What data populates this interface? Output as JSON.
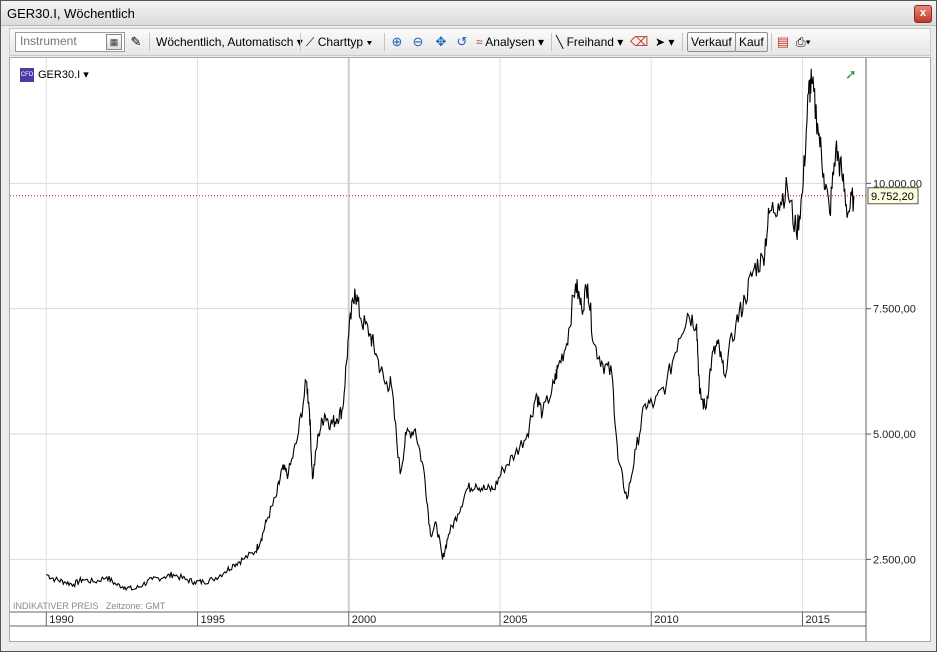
{
  "window": {
    "title": "GER30.I, Wöchentlich",
    "close_label": "x"
  },
  "toolbar": {
    "instrument_placeholder": "Instrument",
    "interval_label": "Wöchentlich, Automatisch",
    "charttype_label": "Charttyp",
    "analysen_label": "Analysen",
    "freihand_label": "Freihand",
    "verkauf_label": "Verkauf",
    "kauf_label": "Kauf"
  },
  "chart": {
    "legend_symbol": "GER30.I",
    "footer_price": "INDIKATIVER PREIS",
    "footer_tz": "Zeitzone: GMT",
    "current_price_label": "9.752,20"
  },
  "chart_data": {
    "type": "line",
    "series": [
      {
        "values": [
          [
            1990.0,
            2200
          ],
          [
            1990.3,
            2100
          ],
          [
            1990.6,
            2050
          ],
          [
            1990.9,
            2000
          ],
          [
            1991.2,
            2100
          ],
          [
            1991.6,
            2050
          ],
          [
            1992.0,
            2150
          ],
          [
            1992.3,
            2000
          ],
          [
            1992.6,
            1950
          ],
          [
            1992.9,
            1900
          ],
          [
            1993.2,
            2000
          ],
          [
            1993.5,
            2100
          ],
          [
            1993.9,
            2150
          ],
          [
            1994.2,
            2200
          ],
          [
            1994.6,
            2100
          ],
          [
            1994.9,
            2050
          ],
          [
            1995.2,
            2050
          ],
          [
            1995.5,
            2100
          ],
          [
            1995.9,
            2250
          ],
          [
            1996.2,
            2400
          ],
          [
            1996.5,
            2500
          ],
          [
            1996.9,
            2650
          ],
          [
            1997.1,
            2900
          ],
          [
            1997.3,
            3300
          ],
          [
            1997.6,
            3750
          ],
          [
            1997.8,
            4300
          ],
          [
            1998.0,
            4200
          ],
          [
            1998.3,
            4900
          ],
          [
            1998.6,
            6050
          ],
          [
            1998.7,
            5500
          ],
          [
            1998.8,
            4100
          ],
          [
            1999.0,
            5000
          ],
          [
            1999.2,
            5400
          ],
          [
            1999.4,
            5200
          ],
          [
            1999.6,
            5300
          ],
          [
            1999.8,
            5500
          ],
          [
            2000.0,
            7000
          ],
          [
            2000.2,
            7900
          ],
          [
            2000.4,
            7300
          ],
          [
            2000.7,
            7000
          ],
          [
            2000.9,
            6600
          ],
          [
            2001.2,
            6000
          ],
          [
            2001.4,
            6000
          ],
          [
            2001.7,
            4200
          ],
          [
            2001.9,
            5000
          ],
          [
            2002.2,
            5100
          ],
          [
            2002.5,
            4200
          ],
          [
            2002.7,
            3000
          ],
          [
            2002.9,
            3200
          ],
          [
            2003.1,
            2500
          ],
          [
            2003.3,
            3000
          ],
          [
            2003.6,
            3400
          ],
          [
            2003.9,
            3900
          ],
          [
            2004.2,
            4000
          ],
          [
            2004.5,
            3900
          ],
          [
            2004.8,
            3900
          ],
          [
            2005.1,
            4300
          ],
          [
            2005.5,
            4600
          ],
          [
            2005.9,
            5000
          ],
          [
            2006.2,
            5800
          ],
          [
            2006.4,
            5400
          ],
          [
            2006.8,
            6000
          ],
          [
            2006.9,
            6300
          ],
          [
            2007.2,
            6800
          ],
          [
            2007.5,
            8000
          ],
          [
            2007.7,
            7500
          ],
          [
            2007.9,
            8000
          ],
          [
            2008.1,
            6800
          ],
          [
            2008.4,
            6400
          ],
          [
            2008.7,
            6200
          ],
          [
            2008.9,
            4500
          ],
          [
            2009.2,
            3700
          ],
          [
            2009.5,
            4700
          ],
          [
            2009.8,
            5600
          ],
          [
            2010.1,
            5600
          ],
          [
            2010.5,
            6000
          ],
          [
            2010.9,
            6900
          ],
          [
            2011.2,
            7400
          ],
          [
            2011.5,
            7200
          ],
          [
            2011.6,
            5800
          ],
          [
            2011.8,
            5500
          ],
          [
            2012.0,
            6500
          ],
          [
            2012.2,
            6800
          ],
          [
            2012.4,
            6200
          ],
          [
            2012.8,
            7200
          ],
          [
            2013.1,
            7700
          ],
          [
            2013.4,
            8300
          ],
          [
            2013.7,
            8500
          ],
          [
            2013.9,
            9400
          ],
          [
            2014.2,
            9600
          ],
          [
            2014.5,
            9900
          ],
          [
            2014.8,
            9000
          ],
          [
            2015.0,
            9800
          ],
          [
            2015.2,
            11800
          ],
          [
            2015.3,
            12000
          ],
          [
            2015.5,
            11200
          ],
          [
            2015.7,
            10200
          ],
          [
            2015.9,
            9400
          ],
          [
            2016.1,
            10700
          ],
          [
            2016.3,
            10200
          ],
          [
            2016.5,
            9400
          ],
          [
            2016.7,
            9752
          ]
        ]
      }
    ],
    "x_ticks": [
      "1990",
      "1995",
      "2000",
      "2005",
      "2010",
      "2015"
    ],
    "y_ticks": [
      "2.500,00",
      "5.000,00",
      "7.500,00",
      "10.000,00"
    ],
    "xlim": [
      1988.8,
      2017.1
    ],
    "ylim": [
      1450,
      12500
    ],
    "current_price": 9752.2,
    "grid": true
  }
}
